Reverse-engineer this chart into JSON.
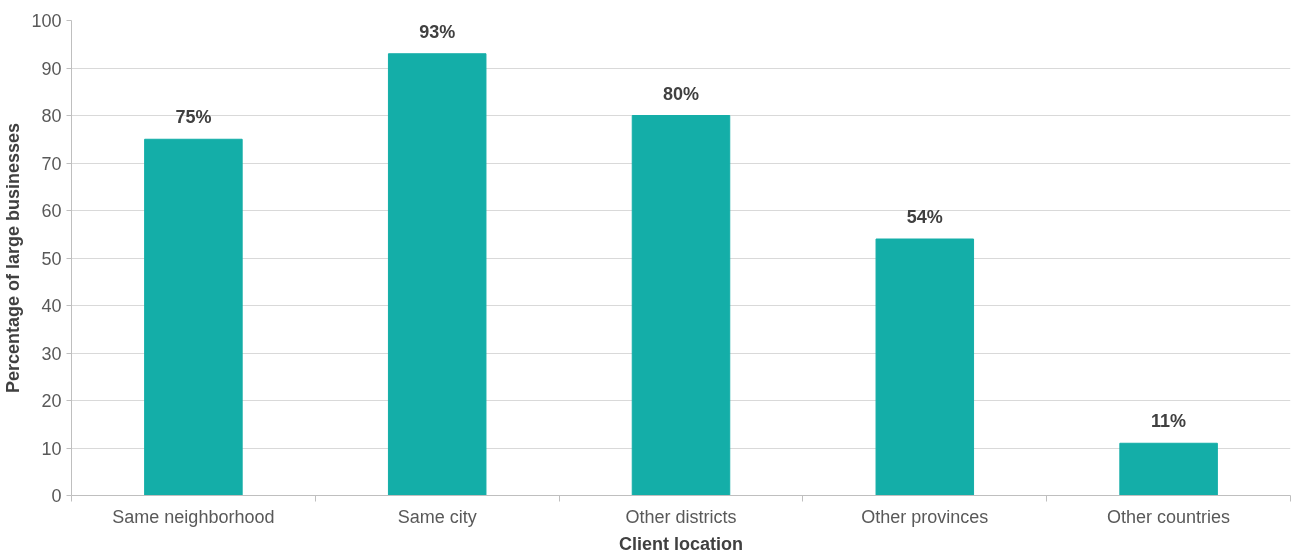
{
  "chart_data": {
    "type": "bar",
    "xlabel": "Client location",
    "ylabel": "Percentage of large businesses",
    "categories": [
      "Same neighborhood",
      "Same city",
      "Other districts",
      "Other provinces",
      "Other countries"
    ],
    "values": [
      75,
      93,
      80,
      54,
      11
    ],
    "value_labels": [
      "75%",
      "93%",
      "80%",
      "54%",
      "11%"
    ],
    "color": "#14aea8",
    "ylim": [
      0,
      100
    ],
    "yticks": [
      0,
      10,
      20,
      30,
      40,
      50,
      60,
      70,
      80,
      90,
      100
    ],
    "grid": "y"
  }
}
